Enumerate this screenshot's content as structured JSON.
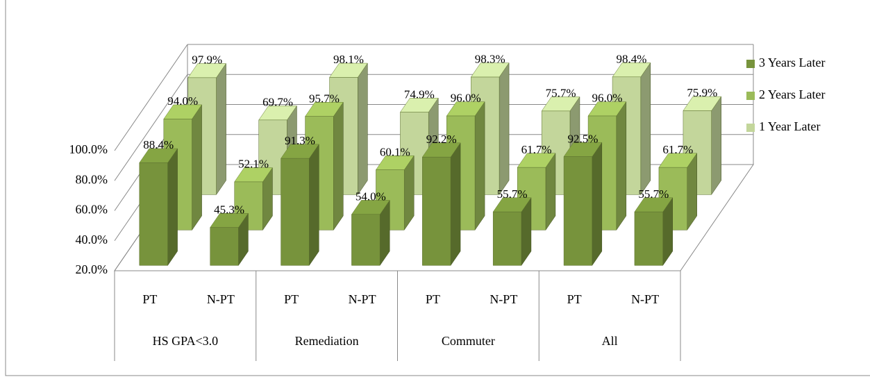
{
  "chart_data": {
    "type": "bar3d",
    "categories": [
      "PT",
      "N-PT",
      "PT",
      "N-PT",
      "PT",
      "N-PT",
      "PT",
      "N-PT"
    ],
    "groups": [
      "HS GPA<3.0",
      "Remediation",
      "Commuter",
      "All"
    ],
    "series": [
      {
        "name": "3 Years Later",
        "color": "#77933c",
        "values": [
          88.4,
          45.3,
          91.3,
          54.0,
          92.2,
          55.7,
          92.5,
          55.7
        ],
        "value_labels": [
          "88.4%",
          "45.3%",
          "91.3%",
          "54.0%",
          "92.2%",
          "55.7%",
          "92.5%",
          "55.7%"
        ]
      },
      {
        "name": "2 Years Later",
        "color": "#9bbb59",
        "values": [
          94.0,
          52.1,
          95.7,
          60.1,
          96.0,
          61.7,
          96.0,
          61.7
        ],
        "value_labels": [
          "94.0%",
          "52.1%",
          "95.7%",
          "60.1%",
          "96.0%",
          "61.7%",
          "96.0%",
          "61.7%"
        ]
      },
      {
        "name": "1 Year Later",
        "color": "#c3d69b",
        "values": [
          97.9,
          69.7,
          98.1,
          74.9,
          98.3,
          75.7,
          98.4,
          75.9
        ],
        "value_labels": [
          "97.9%",
          "69.7%",
          "98.1%",
          "74.9%",
          "98.3%",
          "75.7%",
          "98.4%",
          "75.9%"
        ]
      }
    ],
    "ylim": [
      20,
      100
    ],
    "yticks": [
      {
        "value": 20,
        "label": "20.0%"
      },
      {
        "value": 40,
        "label": "40.0%"
      },
      {
        "value": 60,
        "label": "60.0%"
      },
      {
        "value": 80,
        "label": "80.0%"
      },
      {
        "value": 100,
        "label": "100.0%"
      }
    ],
    "grid": true,
    "legend": "right"
  }
}
